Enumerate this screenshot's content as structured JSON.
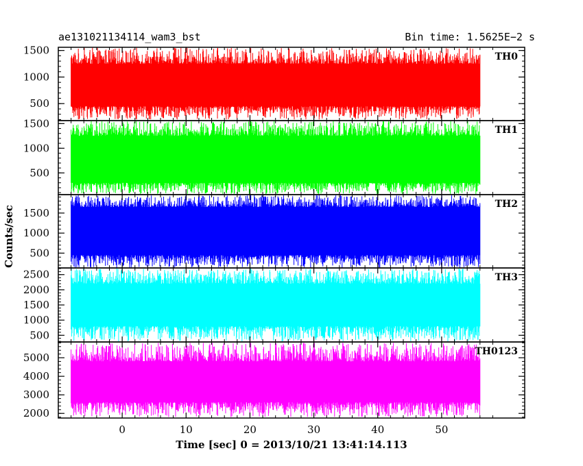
{
  "header": {
    "title": "ae131021134114_wam3_bst",
    "bin_time": "Bin time: 1.5625E−2 s"
  },
  "chart_data": {
    "type": "line",
    "xlabel": "Time [sec] 0 = 2013/10/21 13:41:14.113",
    "ylabel": "Counts/sec",
    "xlim": [
      -10,
      63
    ],
    "x_ticks": [
      0,
      10,
      20,
      30,
      40,
      50
    ],
    "x_tick_labels": [
      "0",
      "10",
      "20",
      "30",
      "40",
      "50"
    ],
    "data_range_x": [
      -8,
      56
    ],
    "grid": false,
    "panels": [
      {
        "name": "TH0",
        "color": "#ff0000",
        "ylim": [
          180,
          1560
        ],
        "y_ticks": [
          500,
          1000,
          1500
        ],
        "y_tick_labels": [
          "500",
          "1000",
          "1500"
        ],
        "band": {
          "low": 450,
          "high": 1250,
          "min": 200,
          "max": 1550
        }
      },
      {
        "name": "TH1",
        "color": "#00ff00",
        "ylim": [
          60,
          1560
        ],
        "y_ticks": [
          500,
          1000,
          1500
        ],
        "y_tick_labels": [
          "500",
          "1000",
          "1500"
        ],
        "band": {
          "low": 300,
          "high": 1250,
          "min": 70,
          "max": 1550
        }
      },
      {
        "name": "TH2",
        "color": "#0000ff",
        "ylim": [
          130,
          1960
        ],
        "y_ticks": [
          500,
          1000,
          1500
        ],
        "y_tick_labels": [
          "500",
          "1000",
          "1500"
        ],
        "band": {
          "low": 450,
          "high": 1650,
          "min": 140,
          "max": 1950
        }
      },
      {
        "name": "TH3",
        "color": "#00ffff",
        "ylim": [
          280,
          2720
        ],
        "y_ticks": [
          500,
          1000,
          1500,
          2000,
          2500
        ],
        "y_tick_labels": [
          "500",
          "1000",
          "1500",
          "2000",
          "2500"
        ],
        "band": {
          "low": 800,
          "high": 2200,
          "min": 300,
          "max": 2700
        }
      },
      {
        "name": "TH0123",
        "color": "#ff00ff",
        "ylim": [
          1750,
          5850
        ],
        "y_ticks": [
          2000,
          3000,
          4000,
          5000
        ],
        "y_tick_labels": [
          "2000",
          "3000",
          "4000",
          "5000"
        ],
        "band": {
          "low": 2600,
          "high": 4800,
          "min": 1800,
          "max": 5800
        }
      }
    ]
  }
}
